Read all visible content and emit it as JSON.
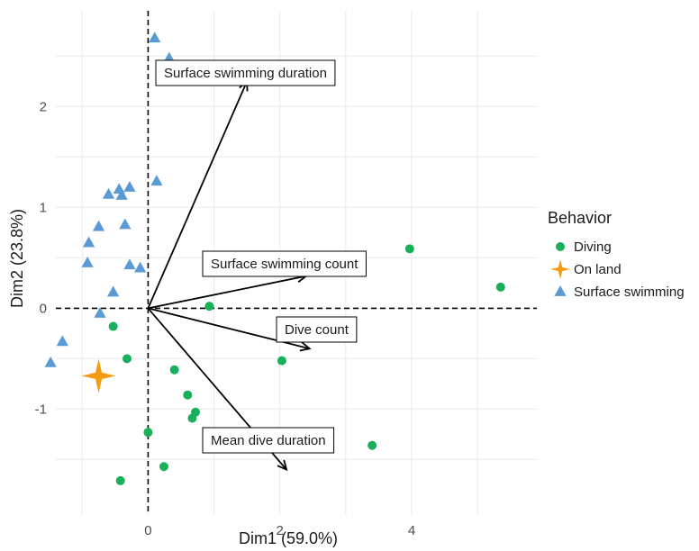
{
  "chart_data": {
    "type": "scatter",
    "title": "",
    "xlabel": "Dim1 (59.0%)",
    "ylabel": "Dim2 (23.8%)",
    "xlim": [
      -1.4,
      5.9
    ],
    "ylim": [
      -2.05,
      2.95
    ],
    "x_ticks": [
      0,
      2,
      4
    ],
    "y_ticks": [
      -1,
      0,
      1,
      2
    ],
    "x_tick_labels": [
      "0",
      "2",
      "4"
    ],
    "y_tick_labels": [
      "-1",
      "0",
      "1",
      "2"
    ],
    "grid": true,
    "legend": {
      "title": "Behavior",
      "position": "right"
    },
    "series": [
      {
        "name": "Diving",
        "color": "#19b05a",
        "marker": "circle",
        "points": [
          [
            3.97,
            0.59
          ],
          [
            5.35,
            0.21
          ],
          [
            0.93,
            0.02
          ],
          [
            -0.53,
            -0.18
          ],
          [
            -0.32,
            -0.5
          ],
          [
            2.03,
            -0.52
          ],
          [
            0.4,
            -0.61
          ],
          [
            0.6,
            -0.86
          ],
          [
            0.72,
            -1.03
          ],
          [
            0.67,
            -1.09
          ],
          [
            0.0,
            -1.23
          ],
          [
            3.4,
            -1.36
          ],
          [
            0.24,
            -1.57
          ],
          [
            -0.42,
            -1.71
          ]
        ]
      },
      {
        "name": "On land",
        "color": "#f39c12",
        "marker": "star",
        "points": [
          [
            -0.75,
            -0.67
          ]
        ]
      },
      {
        "name": "Surface swimming",
        "color": "#5b9bd5",
        "marker": "triangle",
        "points": [
          [
            0.1,
            2.68
          ],
          [
            0.32,
            2.48
          ],
          [
            0.13,
            1.26
          ],
          [
            -0.28,
            1.2
          ],
          [
            -0.44,
            1.18
          ],
          [
            -0.6,
            1.13
          ],
          [
            -0.4,
            1.12
          ],
          [
            -0.75,
            0.81
          ],
          [
            -0.35,
            0.83
          ],
          [
            -0.9,
            0.65
          ],
          [
            -0.92,
            0.45
          ],
          [
            -0.28,
            0.43
          ],
          [
            -0.12,
            0.4
          ],
          [
            -0.53,
            0.16
          ],
          [
            -0.73,
            -0.05
          ],
          [
            -1.3,
            -0.33
          ],
          [
            -1.48,
            -0.54
          ]
        ]
      }
    ],
    "loadings": [
      {
        "label": "Surface swimming duration",
        "x": 1.5,
        "y": 2.25
      },
      {
        "label": "Surface swimming count",
        "x": 2.4,
        "y": 0.32
      },
      {
        "label": "Dive count",
        "x": 2.45,
        "y": -0.4
      },
      {
        "label": "Mean dive duration",
        "x": 2.1,
        "y": -1.6
      }
    ]
  }
}
